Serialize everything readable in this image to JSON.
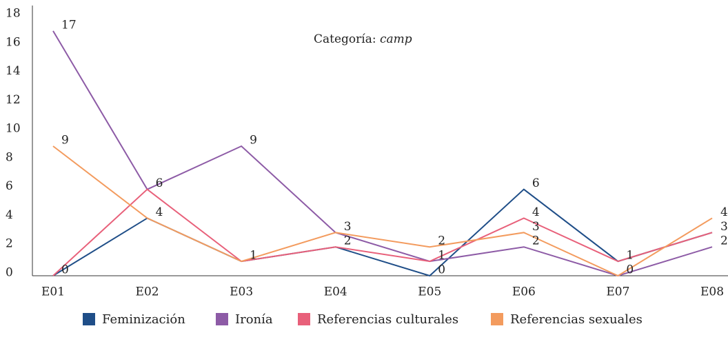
{
  "chart_data": {
    "type": "line",
    "title": "Categoría:",
    "title_italic": "camp",
    "categories": [
      "E01",
      "E02",
      "E03",
      "E04",
      "E05",
      "E06",
      "E07",
      "E08"
    ],
    "series": [
      {
        "name": "Feminización",
        "color": "#1f4e88",
        "values": [
          0,
          4,
          1,
          2,
          0,
          6,
          1,
          3
        ],
        "value_labels": [
          "0",
          null,
          null,
          null,
          "0",
          "6",
          null,
          null
        ]
      },
      {
        "name": "Ironía",
        "color": "#8d5ba6",
        "values": [
          17,
          6,
          9,
          3,
          1,
          2,
          0,
          2
        ],
        "value_labels": [
          "17",
          null,
          "9",
          null,
          null,
          "2",
          null,
          "2"
        ]
      },
      {
        "name": "Referencias culturales",
        "color": "#e8607a",
        "values": [
          0,
          6,
          1,
          2,
          1,
          4,
          1,
          3
        ],
        "value_labels": [
          null,
          "6",
          "1",
          "2",
          "1",
          "4",
          "1",
          "3"
        ]
      },
      {
        "name": "Referencias sexuales",
        "color": "#f39b5e",
        "values": [
          9,
          4,
          1,
          3,
          2,
          3,
          0,
          4
        ],
        "value_labels": [
          "9",
          "4",
          null,
          "3",
          "2",
          "3",
          "0",
          "4"
        ]
      }
    ],
    "ylim": [
      0,
      18
    ],
    "yticks": [
      0,
      2,
      4,
      6,
      8,
      10,
      12,
      14,
      16,
      18
    ],
    "grid": false,
    "legend": "bottom"
  }
}
